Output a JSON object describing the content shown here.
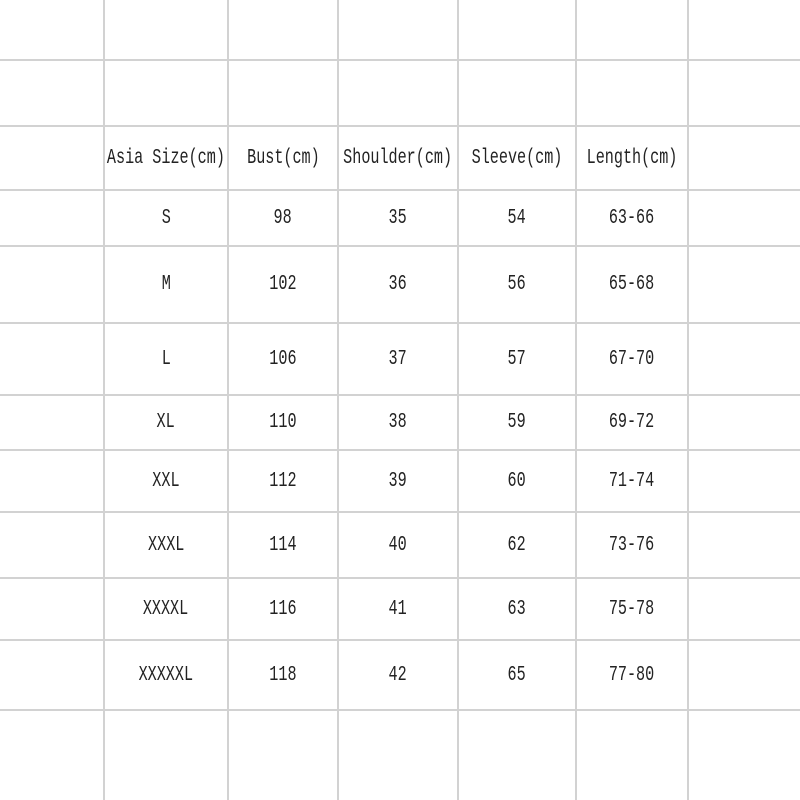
{
  "headers": [
    "Asia Size(cm)",
    "Bust(cm)",
    "Shoulder(cm)",
    "Sleeve(cm)",
    "Length(cm)"
  ],
  "rows": [
    [
      "S",
      "98",
      "35",
      "54",
      "63-66"
    ],
    [
      "M",
      "102",
      "36",
      "56",
      "65-68"
    ],
    [
      "L",
      "106",
      "37",
      "57",
      "67-70"
    ],
    [
      "XL",
      "110",
      "38",
      "59",
      "69-72"
    ],
    [
      "XXL",
      "112",
      "39",
      "60",
      "71-74"
    ],
    [
      "XXXL",
      "114",
      "40",
      "62",
      "73-76"
    ],
    [
      "XXXXL",
      "116",
      "41",
      "63",
      "75-78"
    ],
    [
      "XXXXXL",
      "118",
      "42",
      "65",
      "77-80"
    ]
  ],
  "colors": {
    "grid_line": "#d2d2d2",
    "text": "#222222",
    "background": "#ffffff"
  }
}
